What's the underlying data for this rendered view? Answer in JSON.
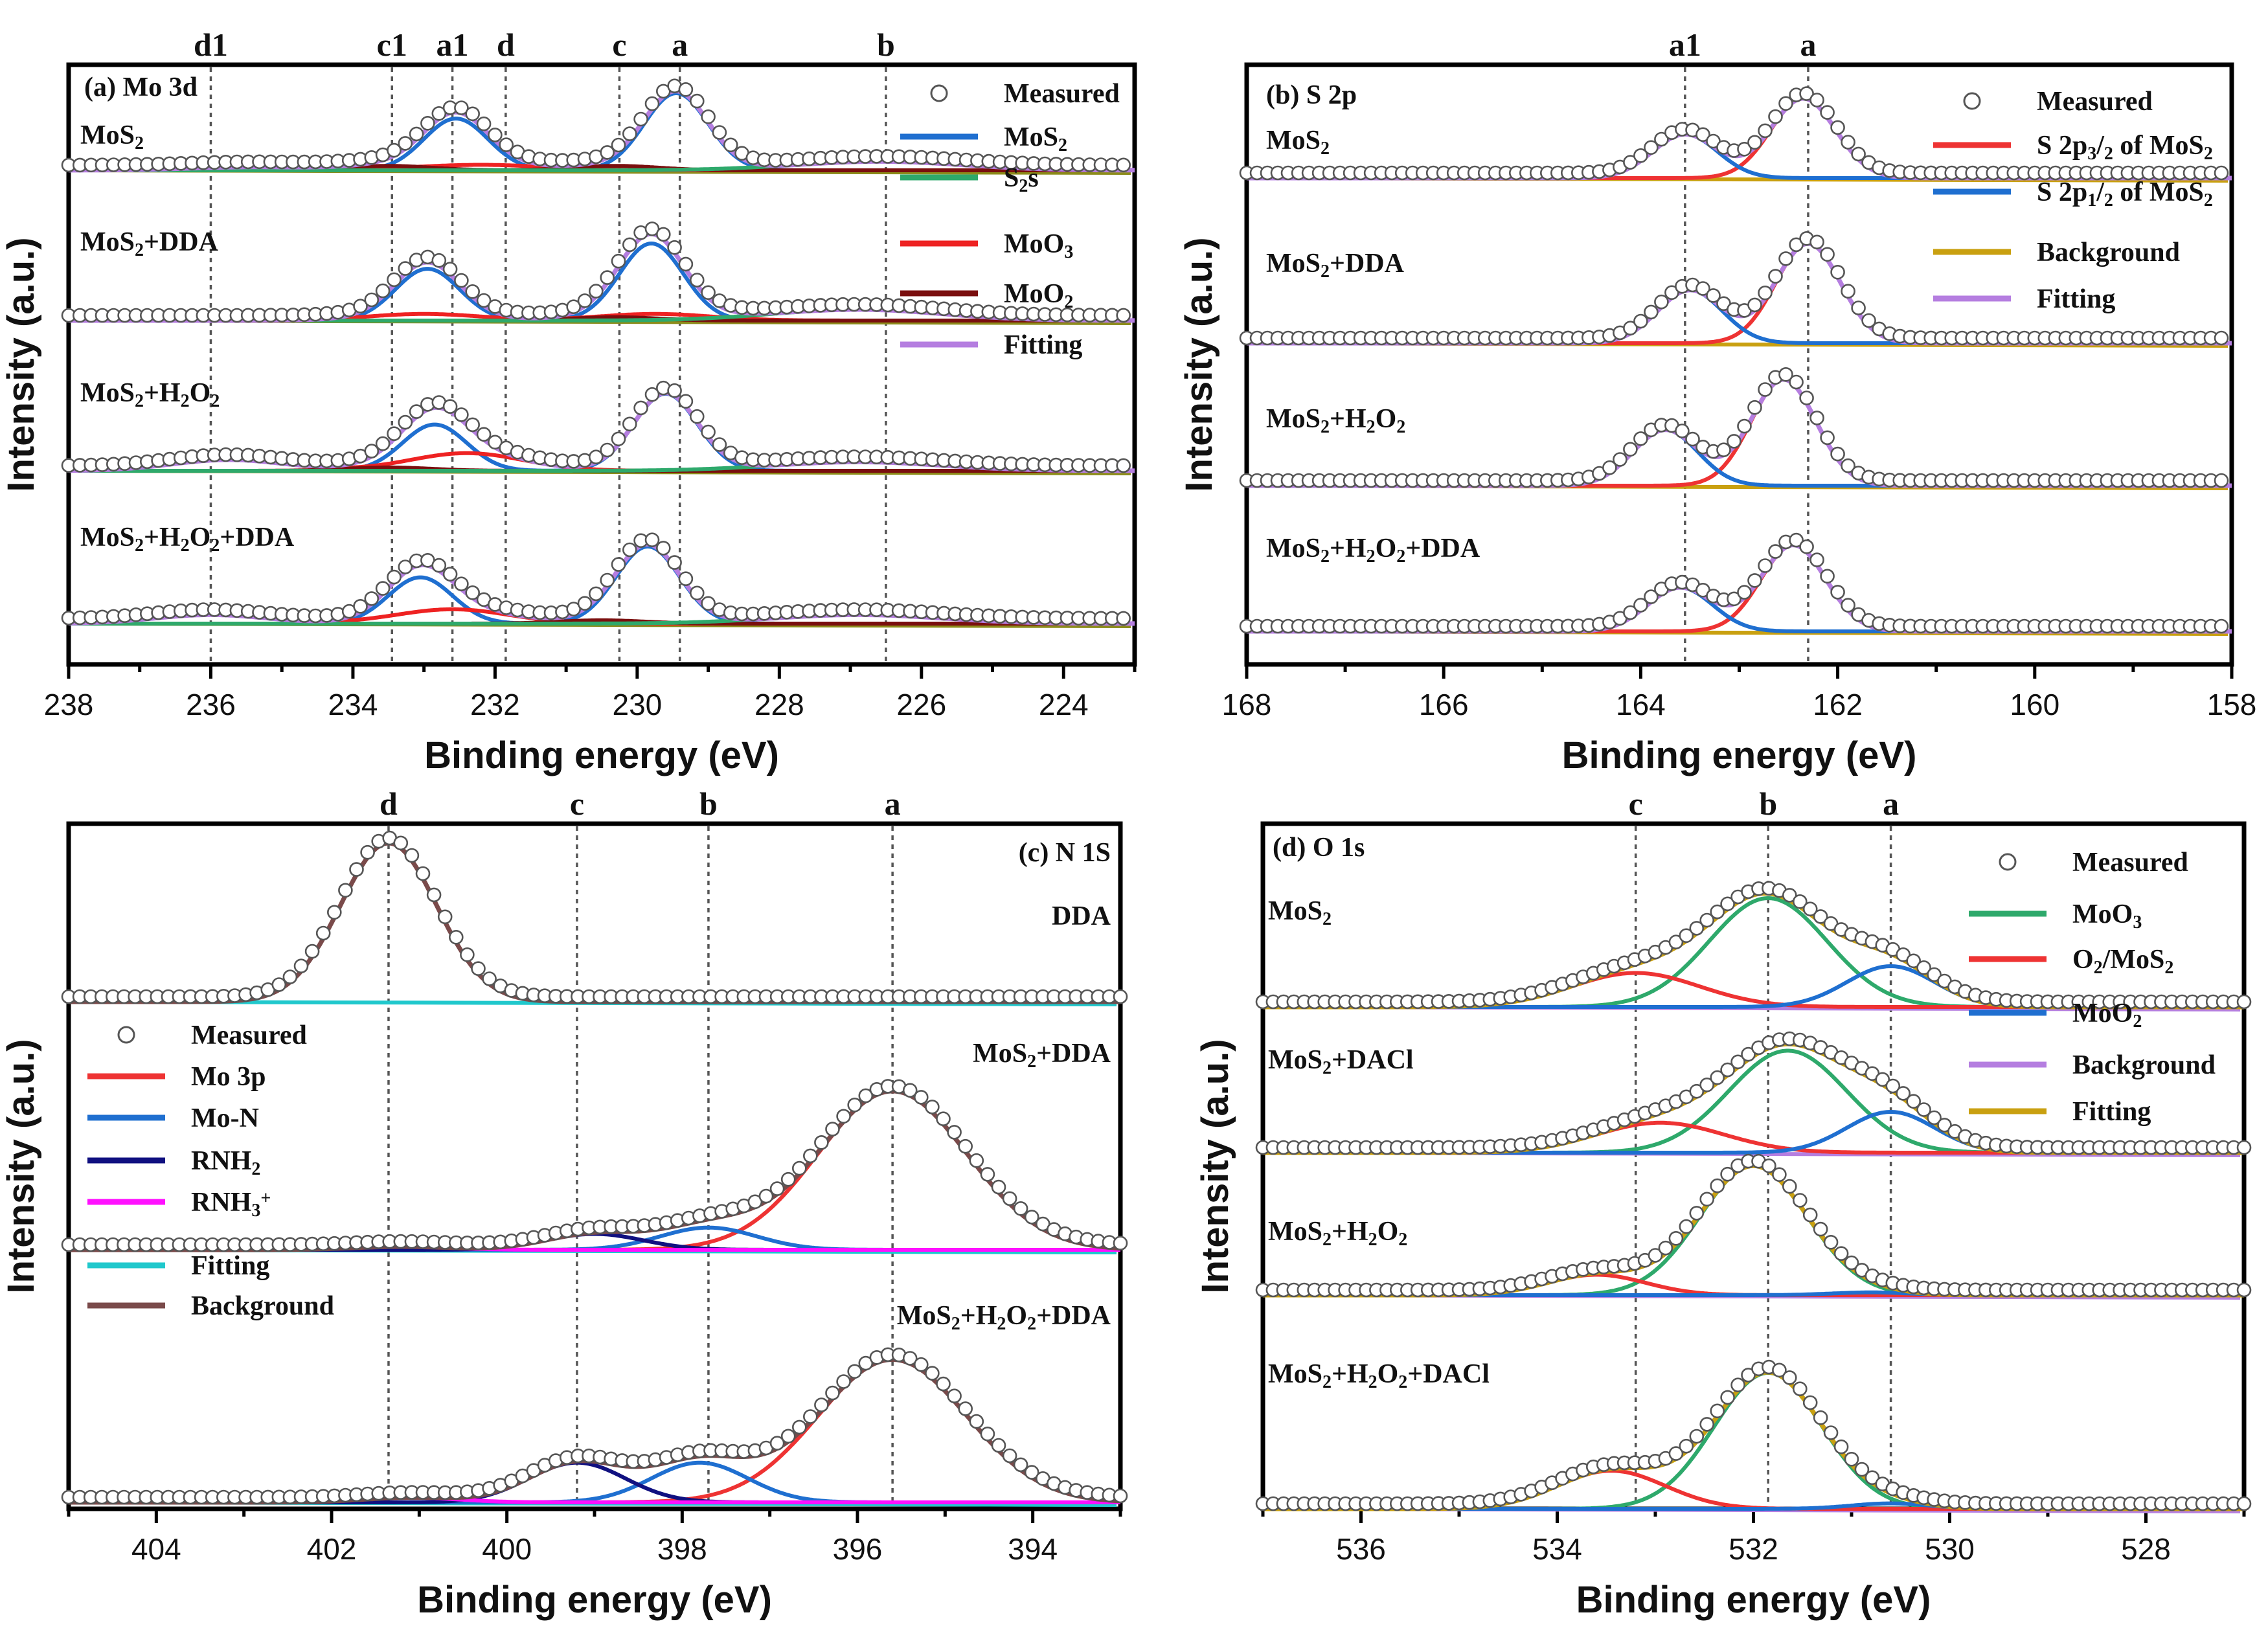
{
  "chart_data": [
    {
      "panel_label": "(a) Mo 3d",
      "type": "line",
      "x_range": [
        238,
        223
      ],
      "major_ticks": [
        238,
        236,
        234,
        232,
        230,
        228,
        226,
        224
      ],
      "xlabel": "Binding energy (eV)",
      "ylabel": "Intensity (a.u.)",
      "peak_markers": [
        {
          "label": "d1",
          "x": 236.0
        },
        {
          "label": "c1",
          "x": 233.45
        },
        {
          "label": "a1",
          "x": 232.6
        },
        {
          "label": "d",
          "x": 231.85
        },
        {
          "label": "c",
          "x": 230.25
        },
        {
          "label": "a",
          "x": 229.4
        },
        {
          "label": "b",
          "x": 226.5
        }
      ],
      "legend": [
        {
          "label": "Measured",
          "color": "#888888",
          "marker": "circle"
        },
        {
          "label": "MoS₂",
          "color": "#1f6fd0"
        },
        {
          "label": "S₂s",
          "color": "#2ea96b"
        },
        {
          "label": "MoO₃",
          "color": "#ee2222"
        },
        {
          "label": "MoO₂",
          "color": "#7a0e0e"
        },
        {
          "label": "Fitting",
          "color": "#b57ee0"
        }
      ],
      "series_colors": {
        "fitting": "#b57ee0",
        "background": "#8c8c1a"
      },
      "samples": [
        {
          "name": "MoS₂",
          "baseline": 0.0,
          "components": [
            {
              "name": "MoS₂",
              "color": "#1f6fd0",
              "peaks": [
                [
                  232.55,
                  0.47,
                  0.45
                ],
                [
                  229.45,
                  0.7,
                  0.45
                ]
              ]
            },
            {
              "name": "MoO₃",
              "color": "#ee2222",
              "peaks": [
                [
                  232.2,
                  0.05,
                  0.9
                ],
                [
                  235.4,
                  0.03,
                  0.9
                ]
              ]
            },
            {
              "name": "MoO₂",
              "color": "#7a0e0e",
              "peaks": [
                [
                  233.5,
                  0.04,
                  0.6
                ],
                [
                  230.3,
                  0.04,
                  0.6
                ]
              ]
            },
            {
              "name": "S₂s",
              "color": "#2ea96b",
              "peaks": [
                [
                  226.6,
                  0.08,
                  1.2
                ]
              ]
            }
          ]
        },
        {
          "name": "MoS₂+DDA",
          "baseline": 0.0,
          "components": [
            {
              "name": "MoS₂",
              "color": "#1f6fd0",
              "peaks": [
                [
                  232.95,
                  0.47,
                  0.45
                ],
                [
                  229.8,
                  0.7,
                  0.45
                ]
              ]
            },
            {
              "name": "MoO₃",
              "color": "#ee2222",
              "peaks": [
                [
                  233.0,
                  0.06,
                  0.8
                ],
                [
                  229.75,
                  0.06,
                  0.8
                ]
              ]
            },
            {
              "name": "MoO₂",
              "color": "#7a0e0e",
              "peaks": [
                [
                  230.3,
                  0.03,
                  0.6
                ]
              ]
            },
            {
              "name": "S₂s",
              "color": "#2ea96b",
              "peaks": [
                [
                  226.9,
                  0.1,
                  1.2
                ]
              ]
            }
          ]
        },
        {
          "name": "MoS₂+H₂O₂",
          "baseline": 0.0,
          "components": [
            {
              "name": "MoS₂",
              "color": "#1f6fd0",
              "peaks": [
                [
                  232.85,
                  0.42,
                  0.45
                ],
                [
                  229.6,
                  0.7,
                  0.45
                ]
              ]
            },
            {
              "name": "MoO₃",
              "color": "#ee2222",
              "peaks": [
                [
                  232.4,
                  0.16,
                  0.8
                ],
                [
                  235.75,
                  0.1,
                  0.8
                ]
              ]
            },
            {
              "name": "MoO₂",
              "color": "#7a0e0e",
              "peaks": [
                [
                  233.5,
                  0.03,
                  0.6
                ]
              ]
            },
            {
              "name": "S₂s",
              "color": "#2ea96b",
              "peaks": [
                [
                  226.9,
                  0.08,
                  1.2
                ]
              ]
            }
          ]
        },
        {
          "name": "MoS₂+H₂O₂+DDA",
          "baseline": 0.0,
          "components": [
            {
              "name": "MoS₂",
              "color": "#1f6fd0",
              "peaks": [
                [
                  233.05,
                  0.42,
                  0.45
                ],
                [
                  229.85,
                  0.7,
                  0.45
                ]
              ]
            },
            {
              "name": "MoO₃",
              "color": "#ee2222",
              "peaks": [
                [
                  232.6,
                  0.13,
                  0.8
                ],
                [
                  236.0,
                  0.08,
                  0.8
                ]
              ]
            },
            {
              "name": "MoO₂",
              "color": "#7a0e0e",
              "peaks": [
                [
                  230.5,
                  0.03,
                  0.6
                ]
              ]
            },
            {
              "name": "S₂s",
              "color": "#2ea96b",
              "peaks": [
                [
                  226.9,
                  0.08,
                  1.2
                ]
              ]
            }
          ]
        }
      ]
    },
    {
      "panel_label": "(b) S 2p",
      "type": "line",
      "x_range": [
        168,
        158
      ],
      "major_ticks": [
        168,
        166,
        164,
        162,
        160,
        158
      ],
      "xlabel": "Binding energy (eV)",
      "ylabel": "Intensity (a.u.)",
      "peak_markers": [
        {
          "label": "a1",
          "x": 163.55
        },
        {
          "label": "a",
          "x": 162.3
        }
      ],
      "legend": [
        {
          "label": "Measured",
          "color": "#888888",
          "marker": "circle"
        },
        {
          "label": "S 2p₃/₂ of MoS₂",
          "color": "#ee3333"
        },
        {
          "label": "S 2p₁/₂ of MoS₂",
          "color": "#1f6fd0"
        },
        {
          "label": "Background",
          "color": "#c9a010"
        },
        {
          "label": "Fitting",
          "color": "#b57ee0"
        }
      ],
      "series_colors": {
        "fitting": "#b57ee0",
        "background": "#c9a010"
      },
      "samples": [
        {
          "name": "MoS₂",
          "baseline": 0.0,
          "components": [
            {
              "name": "S 2p₃/₂ of MoS₂",
              "color": "#ee3333",
              "peaks": [
                [
                  162.35,
                  0.6,
                  0.33
                ]
              ]
            },
            {
              "name": "S 2p₁/₂ of MoS₂",
              "color": "#1f6fd0",
              "peaks": [
                [
                  163.55,
                  0.33,
                  0.33
                ]
              ]
            }
          ]
        },
        {
          "name": "MoS₂+DDA",
          "baseline": 0.0,
          "components": [
            {
              "name": "S 2p₃/₂ of MoS₂",
              "color": "#ee3333",
              "peaks": [
                [
                  162.3,
                  0.75,
                  0.33
                ]
              ]
            },
            {
              "name": "S 2p₁/₂ of MoS₂",
              "color": "#1f6fd0",
              "peaks": [
                [
                  163.5,
                  0.4,
                  0.33
                ]
              ]
            }
          ]
        },
        {
          "name": "MoS₂+H₂O₂",
          "baseline": 0.0,
          "components": [
            {
              "name": "S 2p₃/₂ of MoS₂",
              "color": "#ee3333",
              "peaks": [
                [
                  162.55,
                  0.8,
                  0.33
                ]
              ]
            },
            {
              "name": "S 2p₁/₂ of MoS₂",
              "color": "#1f6fd0",
              "peaks": [
                [
                  163.75,
                  0.42,
                  0.33
                ]
              ]
            }
          ]
        },
        {
          "name": "MoS₂+H₂O₂+DDA",
          "baseline": 0.0,
          "components": [
            {
              "name": "S 2p₃/₂ of MoS₂",
              "color": "#ee3333",
              "peaks": [
                [
                  162.45,
                  0.65,
                  0.33
                ]
              ]
            },
            {
              "name": "S 2p₁/₂ of MoS₂",
              "color": "#1f6fd0",
              "peaks": [
                [
                  163.6,
                  0.33,
                  0.33
                ]
              ]
            }
          ]
        }
      ]
    },
    {
      "panel_label": "(c) N 1S",
      "type": "line",
      "x_range": [
        405,
        393
      ],
      "major_ticks": [
        404,
        402,
        400,
        398,
        396,
        394
      ],
      "xlabel": "Binding energy (eV)",
      "ylabel": "Intensity (a.u.)",
      "peak_markers": [
        {
          "label": "d",
          "x": 401.35
        },
        {
          "label": "c",
          "x": 399.2
        },
        {
          "label": "b",
          "x": 397.7
        },
        {
          "label": "a",
          "x": 395.6
        }
      ],
      "legend": [
        {
          "label": "Measured",
          "color": "#888888",
          "marker": "circle"
        },
        {
          "label": "Mo 3p",
          "color": "#ee3333"
        },
        {
          "label": "Mo-N",
          "color": "#1f6fd0"
        },
        {
          "label": "RNH₂",
          "color": "#101080"
        },
        {
          "label": "RNH₃⁺",
          "color": "#ff10ff"
        },
        {
          "label": "Fitting",
          "color": "#20c8cc"
        },
        {
          "label": "Background",
          "color": "#7a4a4a"
        }
      ],
      "series_colors": {
        "fitting": "#7a4a4a",
        "background": "#20c8cc"
      },
      "samples": [
        {
          "name": "DDA",
          "baseline": 0.0,
          "components": [
            {
              "name": "RNH₃⁺",
              "color": "#ff10ff",
              "peaks": [
                [
                  401.35,
                  1.0,
                  0.55
                ]
              ]
            }
          ]
        },
        {
          "name": "MoS₂+DDA",
          "baseline": 0.0,
          "components": [
            {
              "name": "Mo 3p",
              "color": "#ee3333",
              "peaks": [
                [
                  395.6,
                  1.0,
                  0.85
                ]
              ]
            },
            {
              "name": "Mo-N",
              "color": "#1f6fd0",
              "peaks": [
                [
                  397.7,
                  0.14,
                  0.55
                ]
              ]
            },
            {
              "name": "RNH₂",
              "color": "#101080",
              "peaks": [
                [
                  399.0,
                  0.1,
                  0.55
                ]
              ]
            },
            {
              "name": "RNH₃⁺",
              "color": "#ff10ff",
              "peaks": [
                [
                  401.2,
                  0.02,
                  0.55
                ]
              ]
            }
          ]
        },
        {
          "name": "MoS₂+H₂O₂+DDA",
          "baseline": 0.0,
          "components": [
            {
              "name": "Mo 3p",
              "color": "#ee3333",
              "peaks": [
                [
                  395.6,
                  0.9,
                  0.85
                ]
              ]
            },
            {
              "name": "Mo-N",
              "color": "#1f6fd0",
              "peaks": [
                [
                  397.8,
                  0.25,
                  0.55
                ]
              ]
            },
            {
              "name": "RNH₂",
              "color": "#101080",
              "peaks": [
                [
                  399.2,
                  0.25,
                  0.55
                ]
              ]
            },
            {
              "name": "RNH₃⁺",
              "color": "#ff10ff",
              "peaks": [
                [
                  401.1,
                  0.03,
                  0.55
                ]
              ]
            }
          ]
        }
      ]
    },
    {
      "panel_label": "(d) O 1s",
      "type": "line",
      "x_range": [
        537,
        527
      ],
      "major_ticks": [
        536,
        534,
        532,
        530,
        528
      ],
      "xlabel": "Binding energy (eV)",
      "ylabel": "Intensity (a.u.)",
      "peak_markers": [
        {
          "label": "c",
          "x": 533.2
        },
        {
          "label": "b",
          "x": 531.85
        },
        {
          "label": "a",
          "x": 530.6
        }
      ],
      "legend": [
        {
          "label": "Measured",
          "color": "#888888",
          "marker": "circle"
        },
        {
          "label": "MoO₃",
          "color": "#2ea96b"
        },
        {
          "label": "O₂/MoS₂",
          "color": "#ee3333"
        },
        {
          "label": "MoO₂",
          "color": "#1f6fd0"
        },
        {
          "label": "Background",
          "color": "#b57ee0"
        },
        {
          "label": "Fitting",
          "color": "#c9a010"
        }
      ],
      "series_colors": {
        "fitting": "#c9a010",
        "background": "#b57ee0"
      },
      "samples": [
        {
          "name": "MoS₂",
          "baseline": 0.0,
          "components": [
            {
              "name": "MoO₃",
              "color": "#2ea96b",
              "peaks": [
                [
                  531.85,
                  0.8,
                  0.6
                ]
              ]
            },
            {
              "name": "O₂/MoS₂",
              "color": "#ee3333",
              "peaks": [
                [
                  533.2,
                  0.25,
                  0.65
                ]
              ]
            },
            {
              "name": "MoO₂",
              "color": "#1f6fd0",
              "peaks": [
                [
                  530.6,
                  0.3,
                  0.45
                ]
              ]
            }
          ]
        },
        {
          "name": "MoS₂+DACl",
          "baseline": 0.0,
          "components": [
            {
              "name": "MoO₃",
              "color": "#2ea96b",
              "peaks": [
                [
                  531.65,
                  0.75,
                  0.6
                ]
              ]
            },
            {
              "name": "O₂/MoS₂",
              "color": "#ee3333",
              "peaks": [
                [
                  532.95,
                  0.22,
                  0.65
                ]
              ]
            },
            {
              "name": "MoO₂",
              "color": "#1f6fd0",
              "peaks": [
                [
                  530.6,
                  0.3,
                  0.45
                ]
              ]
            }
          ]
        },
        {
          "name": "MoS₂+H₂O₂",
          "baseline": 0.0,
          "components": [
            {
              "name": "MoO₃",
              "color": "#2ea96b",
              "peaks": [
                [
                  532.0,
                  0.95,
                  0.55
                ]
              ]
            },
            {
              "name": "O₂/MoS₂",
              "color": "#ee3333",
              "peaks": [
                [
                  533.6,
                  0.15,
                  0.5
                ]
              ]
            },
            {
              "name": "MoO₂",
              "color": "#1f6fd0",
              "peaks": [
                [
                  530.8,
                  0.02,
                  0.4
                ]
              ]
            }
          ]
        },
        {
          "name": "MoS₂+H₂O₂+DACl",
          "baseline": 0.0,
          "components": [
            {
              "name": "MoO₃",
              "color": "#2ea96b",
              "peaks": [
                [
                  531.85,
                  1.0,
                  0.55
                ]
              ]
            },
            {
              "name": "O₂/MoS₂",
              "color": "#ee3333",
              "peaks": [
                [
                  533.45,
                  0.28,
                  0.55
                ]
              ]
            },
            {
              "name": "MoO₂",
              "color": "#1f6fd0",
              "peaks": [
                [
                  530.6,
                  0.04,
                  0.4
                ]
              ]
            }
          ]
        }
      ]
    }
  ]
}
